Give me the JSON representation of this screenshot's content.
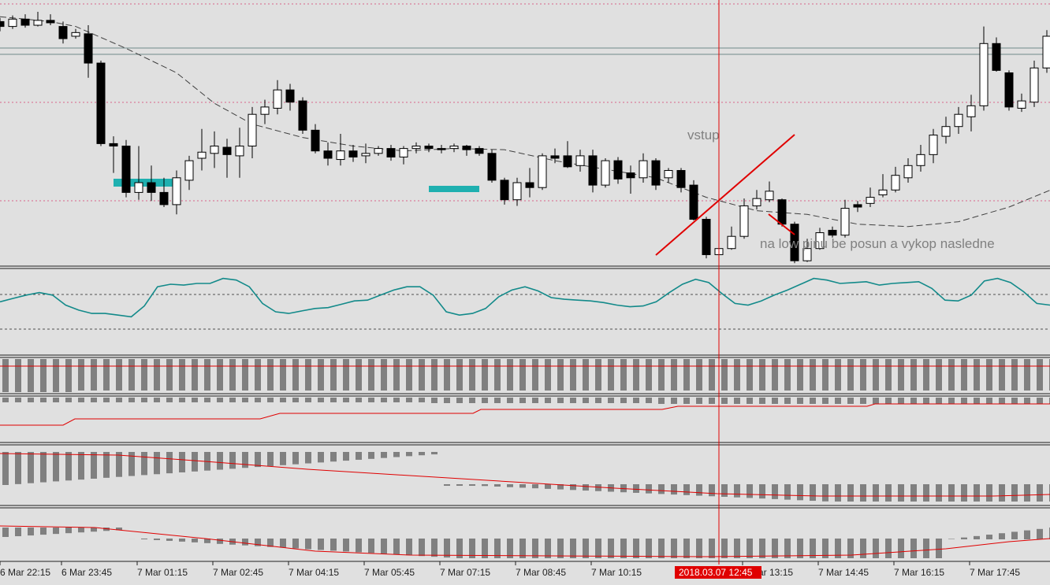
{
  "chart_data": {
    "type": "candlestick",
    "x_labels": [
      "6 Mar 22:15",
      "6 Mar 23:45",
      "7 Mar 01:15",
      "7 Mar 02:45",
      "7 Mar 04:15",
      "7 Mar 05:45",
      "7 Mar 07:15",
      "7 Mar 08:45",
      "7 Mar 10:15",
      "7 Mar 13:15",
      "7 Mar 14:45",
      "7 Mar 16:15",
      "7 Mar 17:45"
    ],
    "crosshair_label": "2018.03.07 12:45",
    "annotations": {
      "entry": "vstup",
      "note": "na low pinu be posun a vykop nasledne"
    },
    "candles": [
      [
        -0.8,
        -1.2,
        -0.5,
        -1.6
      ],
      [
        -1.2,
        -0.6,
        -0.3,
        -1.4
      ],
      [
        -0.6,
        -1.1,
        -0.2,
        -1.3
      ],
      [
        -1.1,
        -0.7,
        0,
        -1.2
      ],
      [
        -0.7,
        -0.9,
        -0.2,
        -1.1
      ],
      [
        -1.2,
        -2.2,
        -0.8,
        -2.6
      ],
      [
        -2.0,
        -1.7,
        -1.4,
        -2.2
      ],
      [
        -1.8,
        -4.2,
        -1.1,
        -5.4
      ],
      [
        -4.2,
        -10.8,
        -4.0,
        -11.0
      ],
      [
        -10.8,
        -11.0,
        -10.2,
        -13.2
      ],
      [
        -11.0,
        -14.8,
        -10.5,
        -15.2
      ],
      [
        -14.8,
        -14.0,
        -11.0,
        -15.4
      ],
      [
        -14.0,
        -14.8,
        -12.6,
        -15.5
      ],
      [
        -14.8,
        -15.8,
        -13.6,
        -16.0
      ],
      [
        -15.8,
        -13.6,
        -13.0,
        -16.6
      ],
      [
        -13.8,
        -12.2,
        -11.8,
        -14.6
      ],
      [
        -12.0,
        -11.5,
        -9.6,
        -13.0
      ],
      [
        -11.6,
        -11.0,
        -9.8,
        -12.8
      ],
      [
        -11.1,
        -11.7,
        -10.4,
        -13.6
      ],
      [
        -11.8,
        -11.0,
        -9.5,
        -13.6
      ],
      [
        -11.0,
        -8.4,
        -7.8,
        -12.0
      ],
      [
        -8.4,
        -7.8,
        -7.2,
        -9.2
      ],
      [
        -7.9,
        -6.4,
        -5.6,
        -8.4
      ],
      [
        -6.4,
        -7.4,
        -5.9,
        -8.1
      ],
      [
        -7.3,
        -9.7,
        -7.0,
        -10.0
      ],
      [
        -9.7,
        -11.4,
        -9.2,
        -11.6
      ],
      [
        -11.4,
        -12.0,
        -10.7,
        -12.6
      ],
      [
        -12.1,
        -11.4,
        -10.0,
        -12.6
      ],
      [
        -11.4,
        -11.9,
        -10.9,
        -12.3
      ],
      [
        -11.8,
        -11.6,
        -10.8,
        -12.4
      ],
      [
        -11.6,
        -11.2,
        -11.0,
        -11.8
      ],
      [
        -11.2,
        -11.9,
        -10.9,
        -12.2
      ],
      [
        -11.9,
        -11.2,
        -11.0,
        -12.5
      ],
      [
        -11.2,
        -11.0,
        -10.7,
        -11.6
      ],
      [
        -11.0,
        -11.2,
        -10.8,
        -11.5
      ],
      [
        -11.2,
        -11.3,
        -10.9,
        -11.6
      ],
      [
        -11.2,
        -11.0,
        -10.8,
        -11.5
      ],
      [
        -11.0,
        -11.3,
        -10.9,
        -11.8
      ],
      [
        -11.2,
        -11.6,
        -11.0,
        -11.8
      ],
      [
        -11.6,
        -13.8,
        -11.3,
        -14.0
      ],
      [
        -13.8,
        -15.4,
        -13.6,
        -15.8
      ],
      [
        -15.4,
        -14.0,
        -13.6,
        -15.9
      ],
      [
        -14.0,
        -14.4,
        -12.8,
        -15.2
      ],
      [
        -14.4,
        -11.8,
        -11.6,
        -14.6
      ],
      [
        -11.8,
        -12.0,
        -11.2,
        -12.4
      ],
      [
        -11.8,
        -12.7,
        -10.6,
        -12.8
      ],
      [
        -12.6,
        -11.8,
        -11.3,
        -13.1
      ],
      [
        -11.8,
        -14.2,
        -11.3,
        -14.8
      ],
      [
        -14.2,
        -12.2,
        -12.0,
        -14.4
      ],
      [
        -12.2,
        -13.7,
        -11.9,
        -14.1
      ],
      [
        -13.2,
        -13.6,
        -12.6,
        -14.9
      ],
      [
        -13.6,
        -12.2,
        -11.6,
        -14.0
      ],
      [
        -12.2,
        -14.2,
        -12.0,
        -14.6
      ],
      [
        -13.6,
        -13.0,
        -12.8,
        -14.0
      ],
      [
        -13.0,
        -14.4,
        -12.8,
        -14.8
      ],
      [
        -14.2,
        -17.0,
        -13.8,
        -17.1
      ],
      [
        -17.0,
        -19.9,
        -16.8,
        -20.2
      ],
      [
        -19.9,
        -19.4,
        -18.8,
        -20.0
      ],
      [
        -19.4,
        -18.4,
        -17.6,
        -19.5
      ],
      [
        -18.4,
        -15.9,
        -15.3,
        -18.6
      ],
      [
        -15.9,
        -15.3,
        -14.6,
        -16.2
      ],
      [
        -15.4,
        -14.7,
        -13.9,
        -15.6
      ],
      [
        -15.4,
        -17.4,
        -15.3,
        -17.6
      ],
      [
        -17.4,
        -20.4,
        -17.2,
        -20.6
      ],
      [
        -20.4,
        -19.4,
        -18.6,
        -20.5
      ],
      [
        -19.4,
        -18.1,
        -17.7,
        -19.5
      ],
      [
        -17.9,
        -18.3,
        -17.6,
        -18.5
      ],
      [
        -18.3,
        -16.1,
        -15.4,
        -18.5
      ],
      [
        -15.8,
        -16.0,
        -15.5,
        -16.4
      ],
      [
        -15.7,
        -15.2,
        -14.4,
        -16.0
      ],
      [
        -15.0,
        -14.6,
        -13.3,
        -15.2
      ],
      [
        -14.6,
        -13.4,
        -12.7,
        -14.8
      ],
      [
        -13.6,
        -12.6,
        -12.0,
        -14.0
      ],
      [
        -12.6,
        -11.7,
        -10.9,
        -13.1
      ],
      [
        -11.7,
        -10.1,
        -9.6,
        -12.4
      ],
      [
        -10.2,
        -9.4,
        -8.6,
        -10.8
      ],
      [
        -9.4,
        -8.4,
        -7.8,
        -10.0
      ],
      [
        -8.6,
        -7.7,
        -6.8,
        -9.8
      ],
      [
        -7.7,
        -2.6,
        -1.2,
        -8.1
      ],
      [
        -2.6,
        -4.8,
        -2.1,
        -4.9
      ],
      [
        -5.0,
        -7.8,
        -4.8,
        -8.1
      ],
      [
        -7.9,
        -7.3,
        -6.7,
        -8.2
      ],
      [
        -7.4,
        -4.6,
        -4.0,
        -7.8
      ],
      [
        -4.6,
        -2.0,
        -1.5,
        -5.0
      ],
      [
        -2.0,
        -0.2,
        0.2,
        -2.4
      ],
      [
        -0.2,
        1.0,
        1.6,
        -0.5
      ],
      [
        1.0,
        -1.8,
        1.6,
        -1.9
      ],
      [
        -1.6,
        -4.5,
        -1.2,
        -4.8
      ],
      [
        -4.6,
        -7.0,
        -4.0,
        -7.2
      ],
      [
        -7.0,
        -7.5,
        -6.6,
        -7.7
      ]
    ],
    "ma": [
      [
        0,
        -0.4
      ],
      [
        4,
        -0.8
      ],
      [
        6,
        -1.2
      ],
      [
        10,
        -3.0
      ],
      [
        14,
        -5.0
      ],
      [
        17,
        -7.5
      ],
      [
        20,
        -9.2
      ],
      [
        24,
        -10.3
      ],
      [
        28,
        -11.0
      ],
      [
        32,
        -11.4
      ],
      [
        36,
        -11.2
      ],
      [
        40,
        -11.3
      ],
      [
        44,
        -12.2
      ],
      [
        48,
        -12.9
      ],
      [
        52,
        -13.6
      ],
      [
        56,
        -15.2
      ],
      [
        60,
        -16.3
      ],
      [
        64,
        -16.6
      ],
      [
        68,
        -17.4
      ],
      [
        72,
        -17.6
      ],
      [
        76,
        -17.2
      ],
      [
        80,
        -16.0
      ],
      [
        84,
        -14.3
      ],
      [
        88,
        -9.8
      ]
    ],
    "stoch": [
      62,
      66,
      70,
      73,
      70,
      58,
      52,
      48,
      48,
      46,
      44,
      57,
      80,
      83,
      82,
      84,
      84,
      90,
      88,
      80,
      60,
      50,
      48,
      51,
      54,
      55,
      59,
      63,
      64,
      70,
      76,
      80,
      80,
      70,
      50,
      46,
      48,
      54,
      68,
      76,
      80,
      75,
      67,
      65,
      64,
      63,
      61,
      58,
      56,
      57,
      62,
      73,
      83,
      89,
      85,
      72,
      60,
      58,
      63,
      70,
      76,
      83,
      90,
      88,
      84,
      85,
      86,
      82,
      84,
      85,
      86,
      78,
      64,
      63,
      70,
      87,
      90,
      85,
      74,
      60,
      58
    ]
  }
}
